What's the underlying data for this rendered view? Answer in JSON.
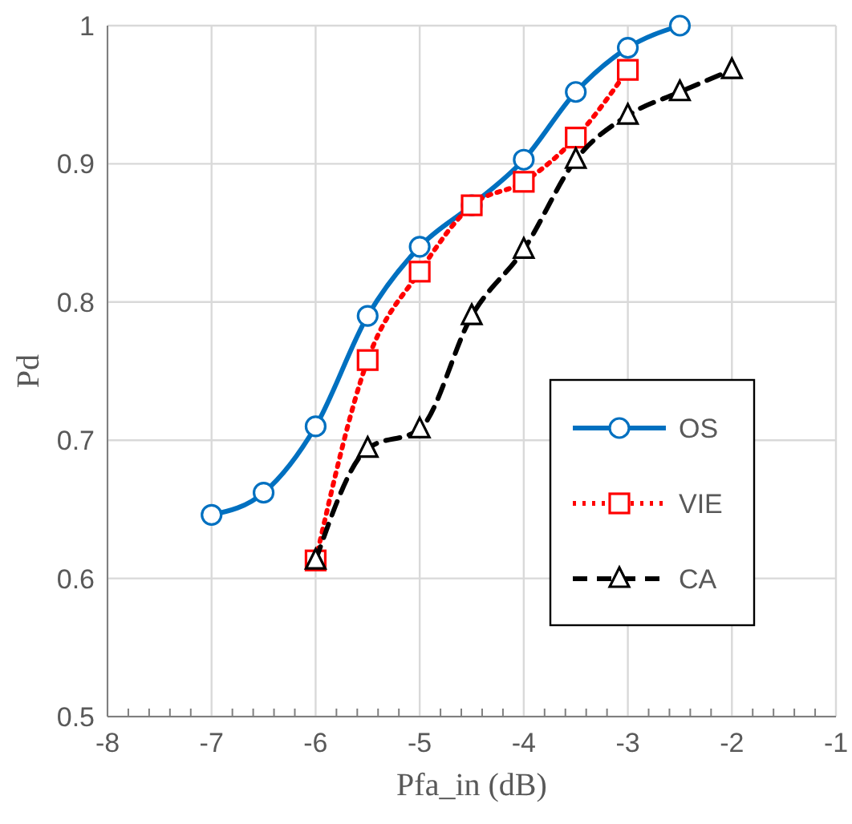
{
  "chart_data": {
    "type": "line",
    "xlabel": "Pfa_in (dB)",
    "ylabel": "Pd",
    "xlim": [
      -8,
      -1
    ],
    "ylim": [
      0.5,
      1
    ],
    "xticks": [
      -8,
      -7,
      -6,
      -5,
      -4,
      -3,
      -2,
      -1
    ],
    "yticks": [
      0.5,
      0.6,
      0.7,
      0.8,
      0.9,
      {
        "value": 1,
        "label": "1"
      }
    ],
    "grid": true,
    "legend": "right",
    "series": [
      {
        "name": "OS",
        "color": "#0070c0",
        "marker": "circle",
        "line_style": "solid",
        "x": [
          -7,
          -6.5,
          -6,
          -5.5,
          -5,
          -4.5,
          -4,
          -3.5,
          -3,
          -2.5
        ],
        "values": [
          0.646,
          0.662,
          0.71,
          0.79,
          0.84,
          0.87,
          0.903,
          0.952,
          0.984,
          1.0
        ]
      },
      {
        "name": "VIE",
        "color": "#ff0000",
        "marker": "square",
        "line_style": "dotted",
        "x": [
          -6,
          -5.5,
          -5,
          -4.5,
          -4,
          -3.5,
          -3
        ],
        "values": [
          0.613,
          0.758,
          0.822,
          0.87,
          0.887,
          0.919,
          0.968
        ]
      },
      {
        "name": "CA",
        "color": "#000000",
        "marker": "triangle",
        "line_style": "dashed",
        "x": [
          -6,
          -5.5,
          -5,
          -4.5,
          -4,
          -3.5,
          -3,
          -2.5,
          -2
        ],
        "values": [
          0.613,
          0.694,
          0.708,
          0.79,
          0.838,
          0.903,
          0.935,
          0.952,
          0.968
        ]
      }
    ]
  }
}
